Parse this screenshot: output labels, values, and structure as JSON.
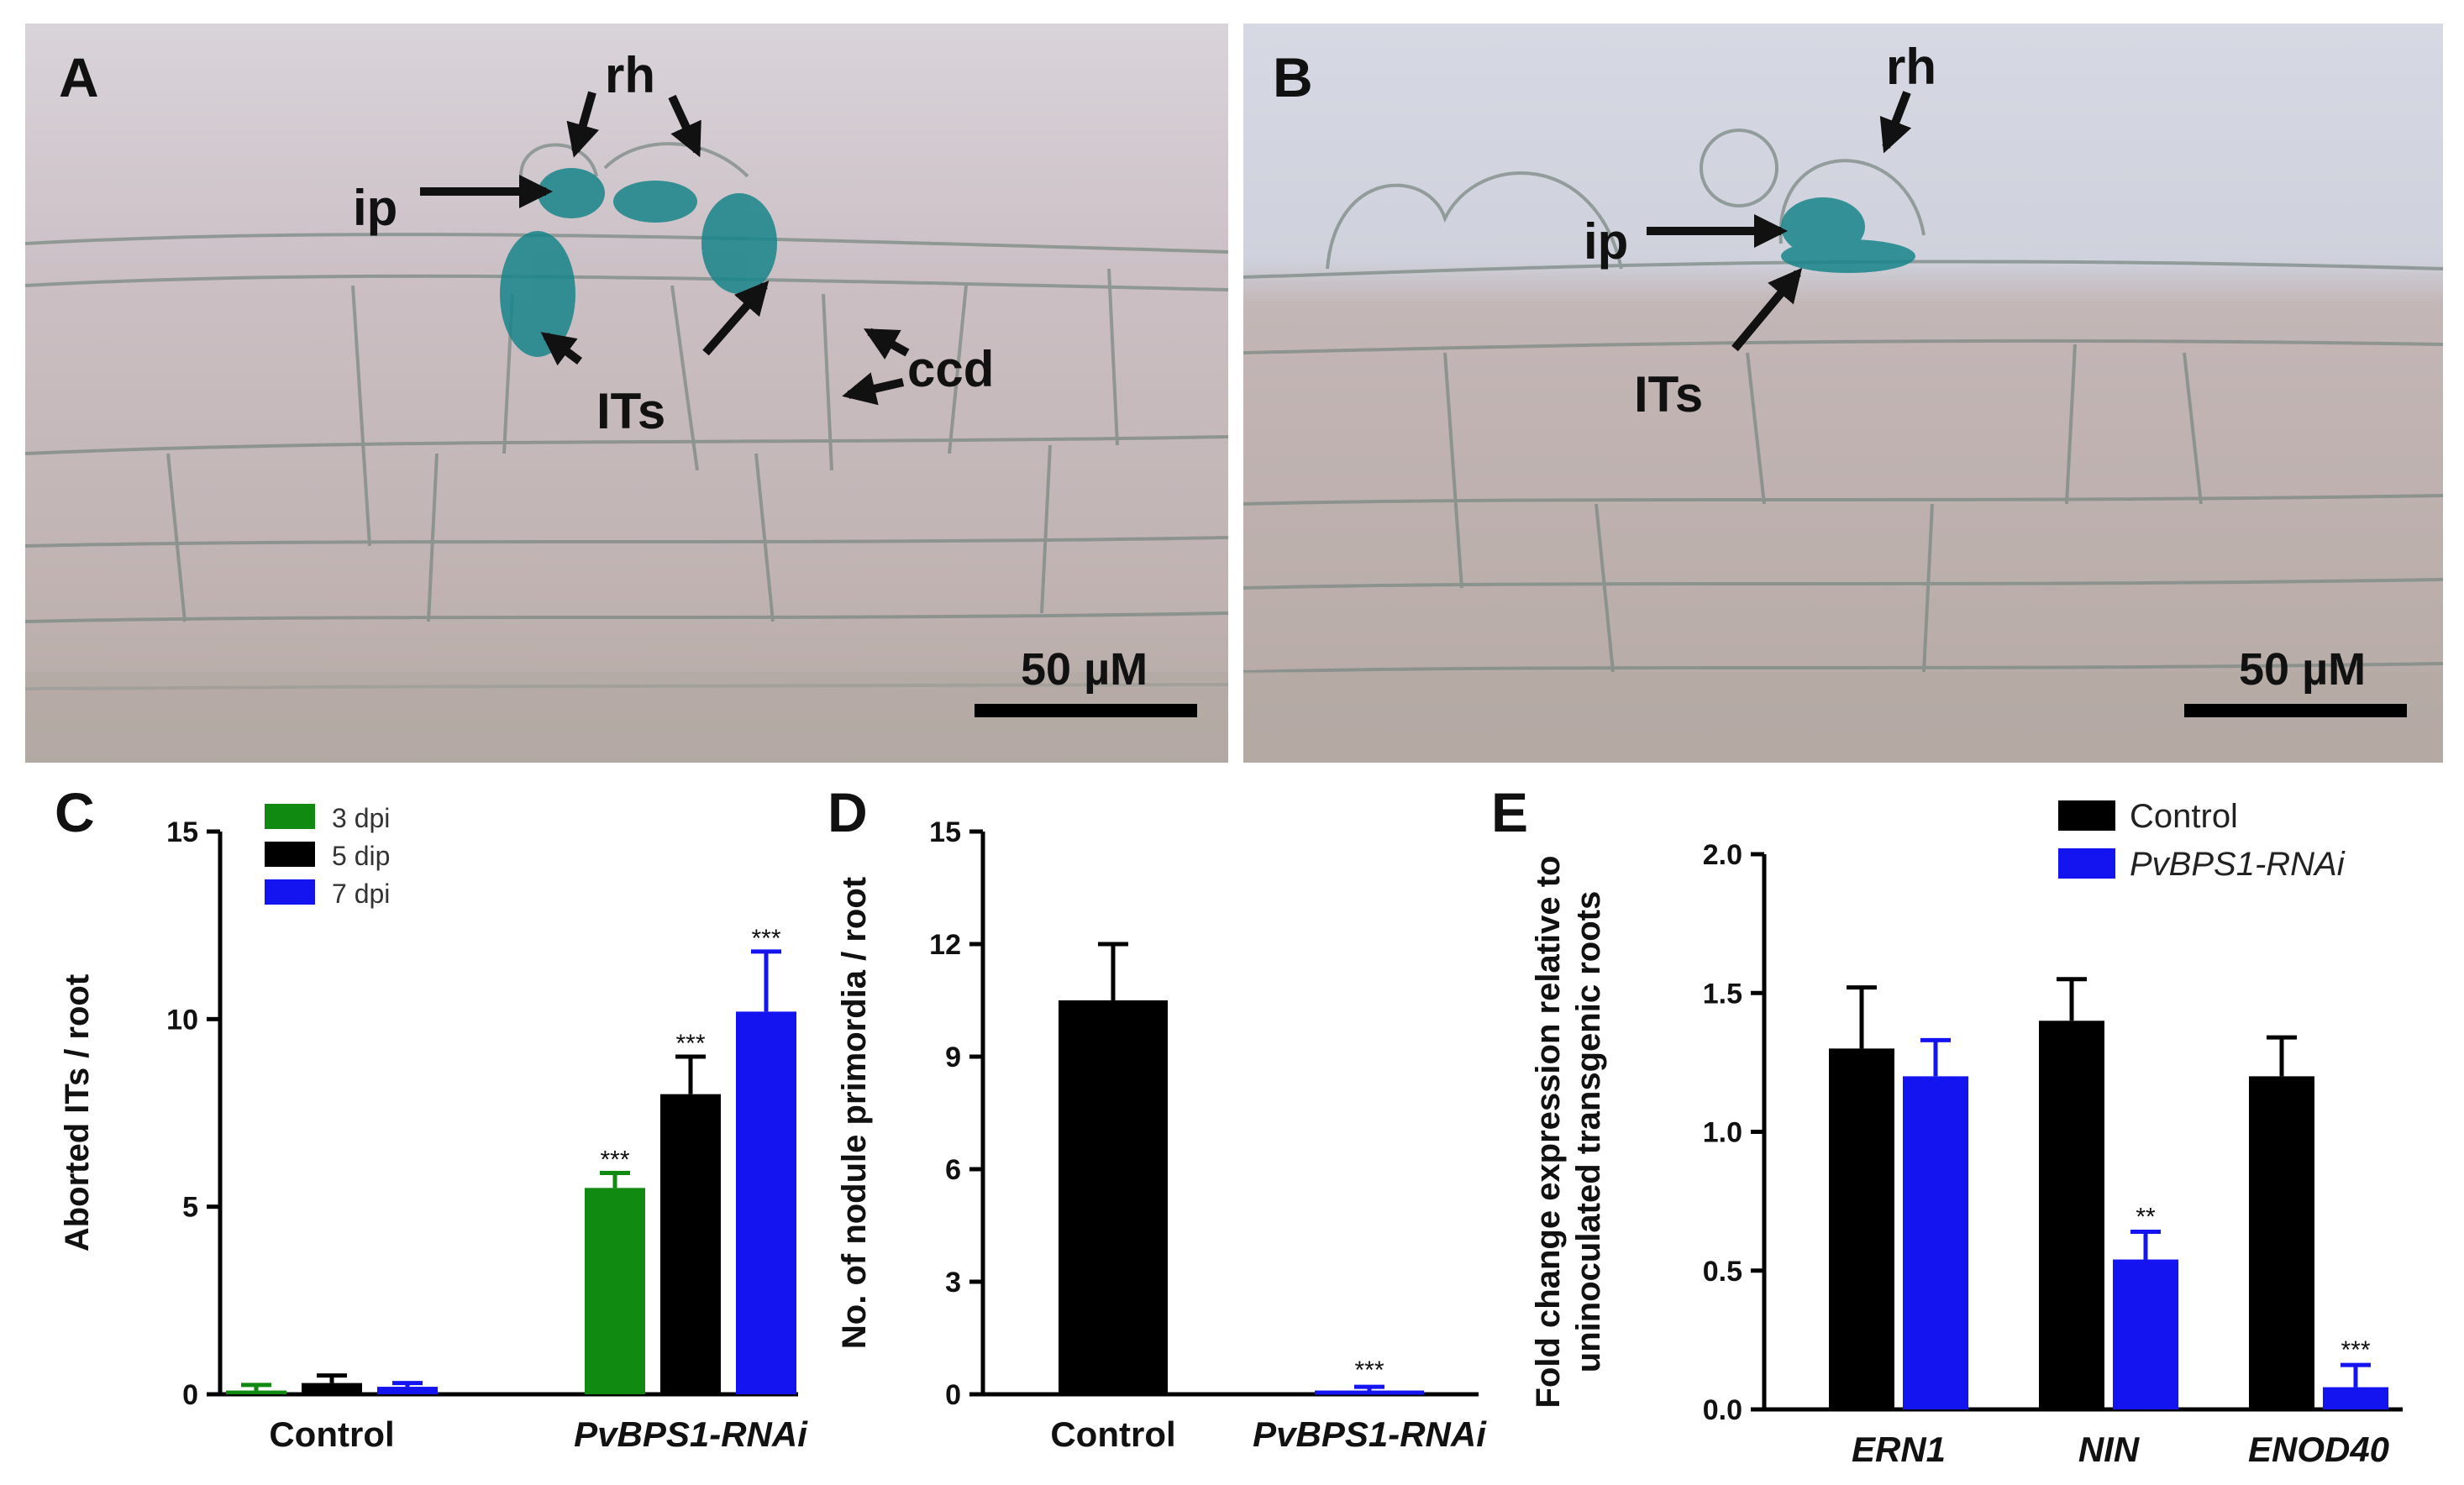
{
  "colors": {
    "green": "#108a10",
    "black": "#000000",
    "blue": "#1414f0",
    "micro_bg": "#c8c2c4",
    "stain": "#17858a"
  },
  "panels": {
    "A": {
      "letter": "A",
      "annotations": [
        "rh",
        "ip",
        "ITs",
        "ccd"
      ],
      "scale_bar": "50 µM"
    },
    "B": {
      "letter": "B",
      "annotations": [
        "rh",
        "ip",
        "ITs"
      ],
      "scale_bar": "50 µM"
    },
    "C": {
      "letter": "C"
    },
    "D": {
      "letter": "D"
    },
    "E": {
      "letter": "E"
    }
  },
  "chart_data": [
    {
      "panel": "C",
      "type": "bar",
      "ylabel": "Aborted ITs / root",
      "xlabel": "",
      "ylim": [
        0,
        15
      ],
      "yticks": [
        "0",
        "5",
        "10",
        "15"
      ],
      "categories": [
        "Control",
        "PvBPS1-RNAi"
      ],
      "category_italic": [
        false,
        true
      ],
      "legend_position": "top-left",
      "series": [
        {
          "name": "3 dpi",
          "color": "#108a10",
          "values": [
            0.1,
            5.5
          ],
          "errors": [
            0.15,
            0.4
          ],
          "sig": [
            "",
            "***"
          ]
        },
        {
          "name": "5 dip",
          "color": "#000000",
          "values": [
            0.3,
            8.0
          ],
          "errors": [
            0.2,
            1.0
          ],
          "sig": [
            "",
            "***"
          ]
        },
        {
          "name": "7 dpi",
          "color": "#1414f0",
          "values": [
            0.2,
            10.2
          ],
          "errors": [
            0.1,
            1.6
          ],
          "sig": [
            "",
            "***"
          ]
        }
      ]
    },
    {
      "panel": "D",
      "type": "bar",
      "ylabel": "No. of nodule primordia / root",
      "xlabel": "",
      "ylim": [
        0,
        15
      ],
      "yticks": [
        "0",
        "3",
        "6",
        "9",
        "12",
        "15"
      ],
      "categories": [
        "Control",
        "PvBPS1-RNAi"
      ],
      "category_italic": [
        false,
        true
      ],
      "series": [
        {
          "color_per_bar": [
            "#000000",
            "#1414f0"
          ],
          "values": [
            10.5,
            0.1
          ],
          "errors": [
            1.5,
            0.1
          ],
          "sig": [
            "",
            "***"
          ]
        }
      ]
    },
    {
      "panel": "E",
      "type": "bar",
      "ylabel_lines": [
        "Fold change expression relative to",
        "uninoculated transgenic roots"
      ],
      "xlabel": "",
      "ylim": [
        0,
        2.0
      ],
      "yticks": [
        "0.0",
        "0.5",
        "1.0",
        "1.5",
        "2.0"
      ],
      "categories": [
        "ERN1",
        "NIN",
        "ENOD40"
      ],
      "category_italic": [
        true,
        true,
        true
      ],
      "legend_position": "top-right",
      "series": [
        {
          "name": "Control",
          "name_italic": false,
          "color": "#000000",
          "values": [
            1.3,
            1.4,
            1.2
          ],
          "errors": [
            0.22,
            0.15,
            0.14
          ],
          "sig": [
            "",
            "",
            ""
          ]
        },
        {
          "name": "PvBPS1-RNAi",
          "name_italic": true,
          "color": "#1414f0",
          "values": [
            1.2,
            0.54,
            0.08
          ],
          "errors": [
            0.13,
            0.1,
            0.08
          ],
          "sig": [
            "",
            "**",
            "***"
          ]
        }
      ]
    }
  ]
}
